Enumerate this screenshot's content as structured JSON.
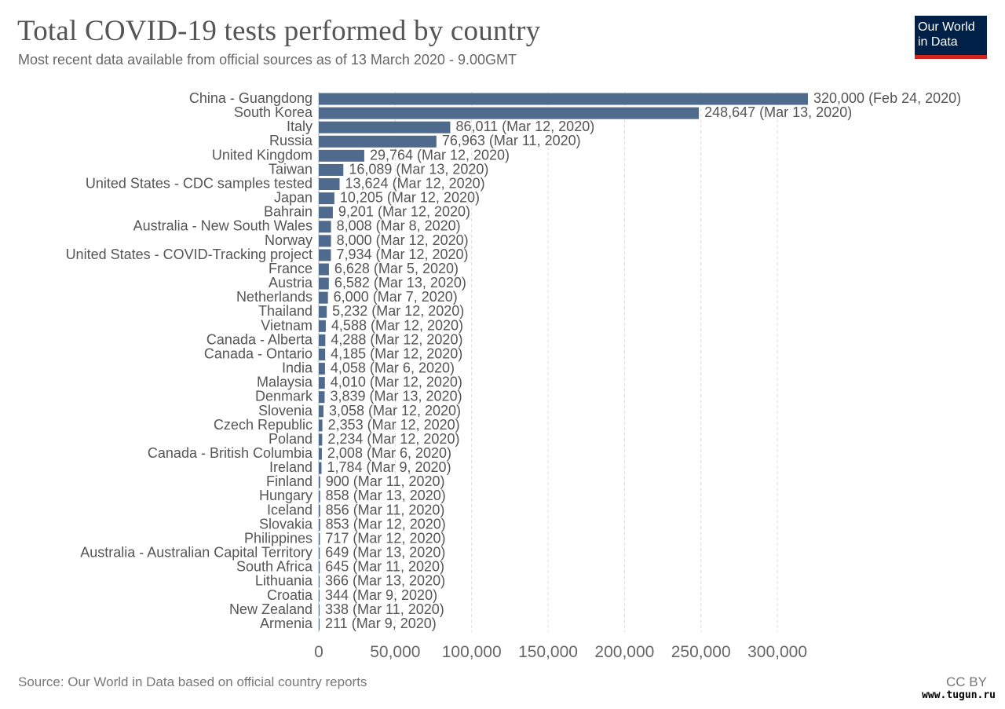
{
  "header": {
    "title": "Total COVID-19 tests performed by country",
    "subtitle": "Most recent data available from official sources as of 13 March 2020 - 9.00GMT",
    "logo_line1": "Our World",
    "logo_line2": "in Data"
  },
  "footer": {
    "source": "Source: Our World in Data based on official country reports",
    "license": "CC BY",
    "watermark": "www.tugun.ru"
  },
  "colors": {
    "bar": "#4e6a8c",
    "grid": "#dddddd",
    "logo_bg": "#002147",
    "logo_accent": "#ce261e"
  },
  "chart_data": {
    "type": "bar",
    "orientation": "horizontal",
    "title": "Total COVID-19 tests performed by country",
    "subtitle": "Most recent data available from official sources as of 13 March 2020 - 9.00GMT",
    "xlim": [
      0,
      320000
    ],
    "ticks": [
      0,
      50000,
      100000,
      150000,
      200000,
      250000,
      300000
    ],
    "tick_labels": [
      "0",
      "50,000",
      "100,000",
      "150,000",
      "200,000",
      "250,000",
      "300,000"
    ],
    "grid": true,
    "categories": [
      "China - Guangdong",
      "South Korea",
      "Italy",
      "Russia",
      "United Kingdom",
      "Taiwan",
      "United States - CDC samples tested",
      "Japan",
      "Bahrain",
      "Australia - New South Wales",
      "Norway",
      "United States - COVID-Tracking project",
      "France",
      "Austria",
      "Netherlands",
      "Thailand",
      "Vietnam",
      "Canada - Alberta",
      "Canada - Ontario",
      "India",
      "Malaysia",
      "Denmark",
      "Slovenia",
      "Czech Republic",
      "Poland",
      "Canada - British Columbia",
      "Ireland",
      "Finland",
      "Hungary",
      "Iceland",
      "Slovakia",
      "Philippines",
      "Australia - Australian Capital Territory",
      "South Africa",
      "Lithuania",
      "Croatia",
      "New Zealand",
      "Armenia"
    ],
    "values": [
      320000,
      248647,
      86011,
      76963,
      29764,
      16089,
      13624,
      10205,
      9201,
      8008,
      8000,
      7934,
      6628,
      6582,
      6000,
      5232,
      4588,
      4288,
      4185,
      4058,
      4010,
      3839,
      3058,
      2353,
      2234,
      2008,
      1784,
      900,
      858,
      856,
      853,
      717,
      649,
      645,
      366,
      344,
      338,
      211
    ],
    "value_labels": [
      "320,000 (Feb 24, 2020)",
      "248,647 (Mar 13, 2020)",
      "86,011 (Mar 12, 2020)",
      "76,963 (Mar 11, 2020)",
      "29,764 (Mar 12, 2020)",
      "16,089 (Mar 13, 2020)",
      "13,624 (Mar 12, 2020)",
      "10,205 (Mar 12, 2020)",
      "9,201 (Mar 12, 2020)",
      "8,008 (Mar 8, 2020)",
      "8,000 (Mar 12, 2020)",
      "7,934 (Mar 12, 2020)",
      "6,628 (Mar 5, 2020)",
      "6,582 (Mar 13, 2020)",
      "6,000 (Mar 7, 2020)",
      "5,232 (Mar 12, 2020)",
      "4,588 (Mar 12, 2020)",
      "4,288 (Mar 12, 2020)",
      "4,185 (Mar 12, 2020)",
      "4,058 (Mar 6, 2020)",
      "4,010 (Mar 12, 2020)",
      "3,839 (Mar 13, 2020)",
      "3,058 (Mar 12, 2020)",
      "2,353 (Mar 12, 2020)",
      "2,234 (Mar 12, 2020)",
      "2,008 (Mar 6, 2020)",
      "1,784 (Mar 9, 2020)",
      "900 (Mar 11, 2020)",
      "858 (Mar 13, 2020)",
      "856 (Mar 11, 2020)",
      "853 (Mar 12, 2020)",
      "717 (Mar 12, 2020)",
      "649 (Mar 13, 2020)",
      "645 (Mar 11, 2020)",
      "366 (Mar 13, 2020)",
      "344 (Mar 9, 2020)",
      "338 (Mar 11, 2020)",
      "211 (Mar 9, 2020)"
    ]
  }
}
